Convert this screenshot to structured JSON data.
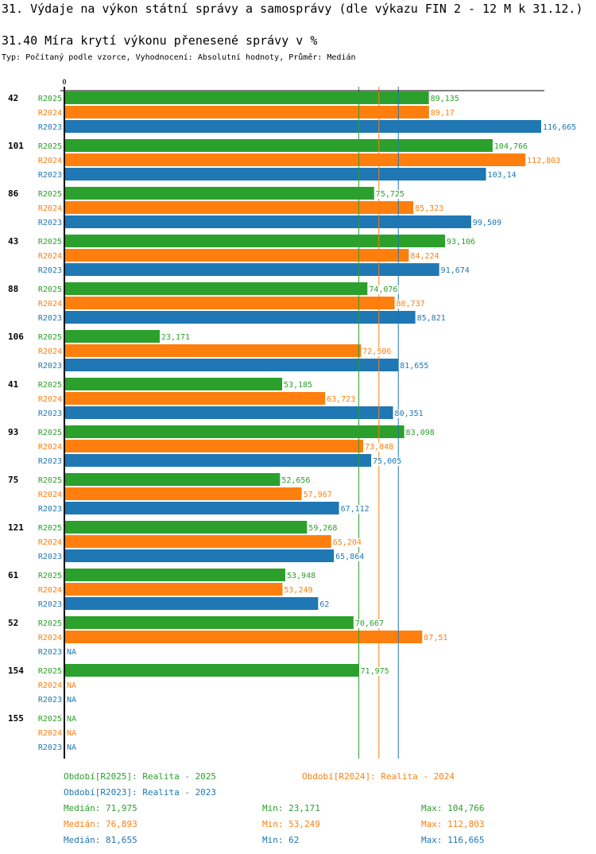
{
  "header": {
    "title": "31. Výdaje na výkon státní správy a samosprávy (dle výkazu FIN 2 - 12 M k 31.12.)",
    "subtitle": "31.40 Míra krytí výkonu přenesené správy v %",
    "meta": "Typ: Počítaný podle vzorce, Vyhodnocení: Absolutní hodnoty, Průměr: Medián"
  },
  "colors": {
    "R2025": "#2ca02c",
    "R2024": "#ff7f0e",
    "R2023": "#1f77b4",
    "axis": "#000000"
  },
  "chart_data": {
    "type": "bar",
    "orientation": "horizontal",
    "title": "31.40 Míra krytí výkonu přenesené správy v %",
    "xlabel": "",
    "ylabel": "",
    "x_tick_labels": [
      "0"
    ],
    "xlim": [
      0,
      116.665
    ],
    "grid": false,
    "categories": [
      "42",
      "101",
      "86",
      "43",
      "88",
      "106",
      "41",
      "93",
      "75",
      "121",
      "61",
      "52",
      "154",
      "155"
    ],
    "series": [
      {
        "name": "R2025",
        "label": "R2025",
        "values": [
          89.135,
          104.766,
          75.725,
          93.106,
          74.076,
          23.171,
          53.185,
          83.098,
          52.656,
          59.268,
          53.948,
          70.667,
          71.975,
          null
        ],
        "value_labels": [
          "89,135",
          "104,766",
          "75,725",
          "93,106",
          "74,076",
          "23,171",
          "53,185",
          "83,098",
          "52,656",
          "59,268",
          "53,948",
          "70,667",
          "71,975",
          "NA"
        ]
      },
      {
        "name": "R2024",
        "label": "R2024",
        "values": [
          89.17,
          112.803,
          85.323,
          84.224,
          80.737,
          72.506,
          63.723,
          73.048,
          57.967,
          65.204,
          53.249,
          87.51,
          null,
          null
        ],
        "value_labels": [
          "89,17",
          "112,803",
          "85,323",
          "84,224",
          "80,737",
          "72,506",
          "63,723",
          "73,048",
          "57,967",
          "65,204",
          "53,249",
          "87,51",
          "NA",
          "NA"
        ]
      },
      {
        "name": "R2023",
        "label": "R2023",
        "values": [
          116.665,
          103.14,
          99.509,
          91.674,
          85.821,
          81.655,
          80.351,
          75.005,
          67.112,
          65.864,
          62,
          null,
          null,
          null
        ],
        "value_labels": [
          "116,665",
          "103,14",
          "99,509",
          "91,674",
          "85,821",
          "81,655",
          "80,351",
          "75,005",
          "67,112",
          "65,864",
          "62",
          "NA",
          "NA",
          "NA"
        ]
      }
    ],
    "reference_lines": [
      {
        "series": "R2025",
        "type": "median",
        "value": 71.975
      },
      {
        "series": "R2024",
        "type": "median",
        "value": 76.893
      },
      {
        "series": "R2023",
        "type": "median",
        "value": 81.655
      }
    ],
    "legend": [
      {
        "series": "R2025",
        "text": "Období[R2025]: Realita - 2025"
      },
      {
        "series": "R2024",
        "text": "Období[R2024]: Realita - 2024"
      },
      {
        "series": "R2023",
        "text": "Období[R2023]: Realita - 2023"
      }
    ],
    "legend_position": "bottom",
    "stats": [
      {
        "series": "R2025",
        "median": "Medián: 71,975",
        "min": "Min: 23,171",
        "max": "Max: 104,766"
      },
      {
        "series": "R2024",
        "median": "Medián: 76,893",
        "min": "Min: 53,249",
        "max": "Max: 112,803"
      },
      {
        "series": "R2023",
        "median": "Medián: 81,655",
        "min": "Min: 62",
        "max": "Max: 116,665"
      }
    ]
  }
}
